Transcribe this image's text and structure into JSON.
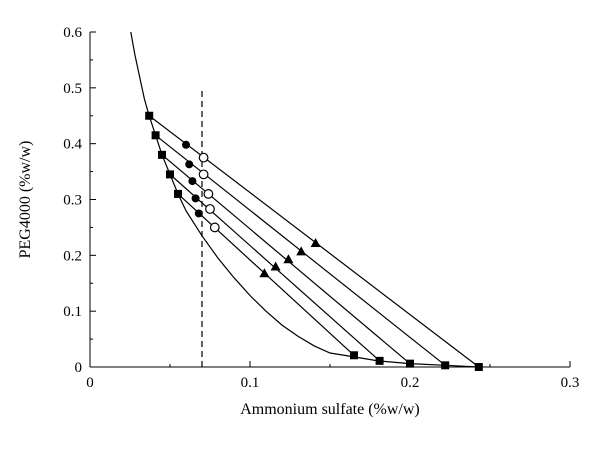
{
  "chart_data": {
    "type": "scatter",
    "xlabel": "Ammonium sulfate (%w/w)",
    "ylabel": "PEG4000 (%w/w)",
    "xlim": [
      0,
      0.3
    ],
    "ylim": [
      0,
      0.6
    ],
    "xticks": [
      "0",
      "0.1",
      "0.2",
      "0.3"
    ],
    "yticks": [
      "0",
      "0.1",
      "0.2",
      "0.3",
      "0.4",
      "0.5",
      "0.6"
    ],
    "xtick_values": [
      0,
      0.1,
      0.2,
      0.3
    ],
    "ytick_values": [
      0,
      0.1,
      0.2,
      0.3,
      0.4,
      0.5,
      0.6
    ],
    "binodal_curve": [
      [
        0.0255,
        0.6
      ],
      [
        0.028,
        0.56
      ],
      [
        0.031,
        0.52
      ],
      [
        0.034,
        0.48
      ],
      [
        0.037,
        0.45
      ],
      [
        0.041,
        0.415
      ],
      [
        0.045,
        0.38
      ],
      [
        0.05,
        0.345
      ],
      [
        0.055,
        0.31
      ],
      [
        0.06,
        0.28
      ],
      [
        0.07,
        0.235
      ],
      [
        0.08,
        0.195
      ],
      [
        0.09,
        0.16
      ],
      [
        0.1,
        0.128
      ],
      [
        0.11,
        0.1
      ],
      [
        0.12,
        0.075
      ],
      [
        0.13,
        0.055
      ],
      [
        0.14,
        0.038
      ],
      [
        0.15,
        0.025
      ],
      [
        0.165,
        0.018
      ],
      [
        0.18,
        0.011
      ],
      [
        0.2,
        0.006
      ],
      [
        0.222,
        0.003
      ],
      [
        0.243,
        0.0
      ]
    ],
    "dashed_line_x": 0.07,
    "dashed_line_y": [
      0,
      0.5
    ],
    "tie_lines": [
      {
        "top": [
          0.037,
          0.45
        ],
        "bottom": [
          0.243,
          0.0
        ],
        "circle": [
          0.071,
          0.375
        ],
        "circle_filled": [
          0.06,
          0.398
        ],
        "triangle": [
          0.141,
          0.222
        ]
      },
      {
        "top": [
          0.041,
          0.415
        ],
        "bottom": [
          0.222,
          0.003
        ],
        "circle": [
          0.071,
          0.345
        ],
        "circle_filled": [
          0.062,
          0.363
        ],
        "triangle": [
          0.132,
          0.207
        ]
      },
      {
        "top": [
          0.045,
          0.38
        ],
        "bottom": [
          0.2,
          0.006
        ],
        "circle": [
          0.074,
          0.31
        ],
        "circle_filled": [
          0.064,
          0.333
        ],
        "triangle": [
          0.124,
          0.193
        ]
      },
      {
        "top": [
          0.05,
          0.345
        ],
        "bottom": [
          0.181,
          0.011
        ],
        "circle": [
          0.075,
          0.283
        ],
        "circle_filled": [
          0.066,
          0.302
        ],
        "triangle": [
          0.116,
          0.18
        ]
      },
      {
        "top": [
          0.055,
          0.31
        ],
        "bottom": [
          0.165,
          0.021
        ],
        "circle": [
          0.078,
          0.25
        ],
        "circle_filled": [
          0.068,
          0.275
        ],
        "triangle": [
          0.109,
          0.168
        ]
      }
    ]
  }
}
